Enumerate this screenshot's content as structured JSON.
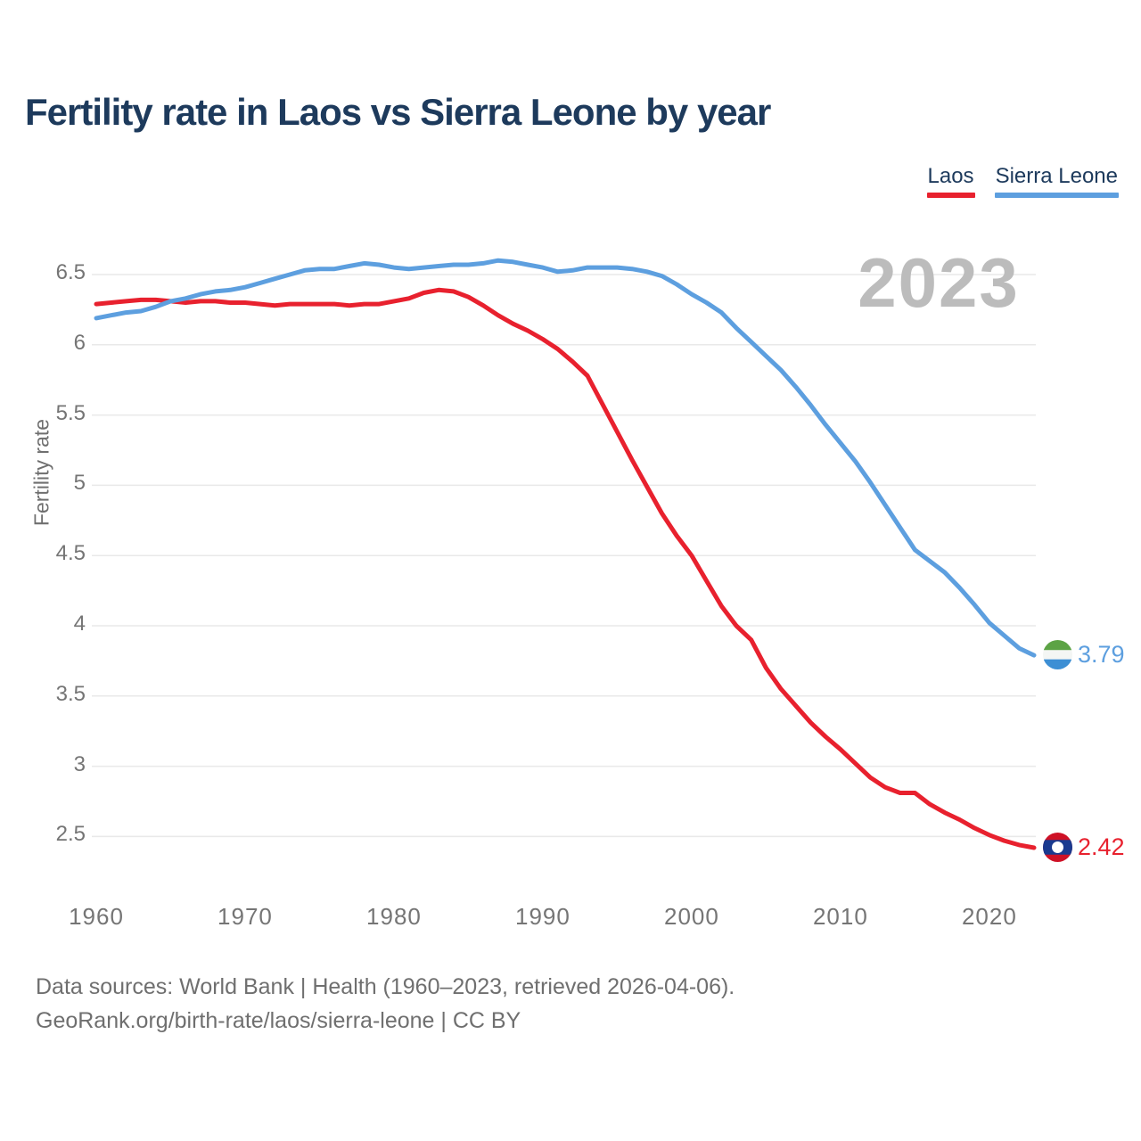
{
  "header": {
    "title": "Fertility rate in Laos vs Sierra Leone by year"
  },
  "legend": {
    "items": [
      {
        "label": "Laos",
        "color": "#e8212e"
      },
      {
        "label": "Sierra Leone",
        "color": "#5d9fdf"
      }
    ]
  },
  "watermark": "2023",
  "y_axis": {
    "label": "Fertility rate"
  },
  "end_labels": [
    {
      "series": "Sierra Leone",
      "value": "3.79",
      "color": "#5d9fdf",
      "flag_icon": "sierra-leone-flag"
    },
    {
      "series": "Laos",
      "value": "2.42",
      "color": "#e8212e",
      "flag_icon": "laos-flag"
    }
  ],
  "footer": {
    "line1": "Data sources: World Bank | Health (1960–2023, retrieved 2026-04-06).",
    "line2": "GeoRank.org/birth-rate/laos/sierra-leone | CC BY"
  },
  "colors": {
    "laos_line": "#e8212e",
    "sierra_leone_line": "#5d9fdf",
    "gridline": "#e9e9e9",
    "title_text": "#1d3a5c",
    "tick_text": "#757575",
    "watermark_text": "#bcbcbc"
  },
  "chart_data": {
    "type": "line",
    "title": "Fertility rate in Laos vs Sierra Leone by year",
    "xlabel": "",
    "ylabel": "Fertility rate",
    "grid": "horizontal",
    "legend_position": "top-right",
    "xticks": [
      1960,
      1970,
      1980,
      1990,
      2000,
      2010,
      2020
    ],
    "yticks": [
      2.5,
      3,
      3.5,
      4,
      4.5,
      5,
      5.5,
      6,
      6.5
    ],
    "xlim": [
      1960,
      2023
    ],
    "ylim": [
      2.3,
      6.72
    ],
    "x": [
      1960,
      1961,
      1962,
      1963,
      1964,
      1965,
      1966,
      1967,
      1968,
      1969,
      1970,
      1971,
      1972,
      1973,
      1974,
      1975,
      1976,
      1977,
      1978,
      1979,
      1980,
      1981,
      1982,
      1983,
      1984,
      1985,
      1986,
      1987,
      1988,
      1989,
      1990,
      1991,
      1992,
      1993,
      1994,
      1995,
      1996,
      1997,
      1998,
      1999,
      2000,
      2001,
      2002,
      2003,
      2004,
      2005,
      2006,
      2007,
      2008,
      2009,
      2010,
      2011,
      2012,
      2013,
      2014,
      2015,
      2016,
      2017,
      2018,
      2019,
      2020,
      2021,
      2022,
      2023
    ],
    "series": [
      {
        "name": "Laos",
        "color": "#e8212e",
        "end_value": 2.42,
        "values": [
          6.29,
          6.3,
          6.31,
          6.32,
          6.32,
          6.31,
          6.3,
          6.31,
          6.31,
          6.3,
          6.3,
          6.29,
          6.28,
          6.29,
          6.29,
          6.29,
          6.29,
          6.28,
          6.29,
          6.29,
          6.31,
          6.33,
          6.37,
          6.39,
          6.38,
          6.34,
          6.28,
          6.21,
          6.15,
          6.1,
          6.04,
          5.97,
          5.88,
          5.78,
          5.58,
          5.38,
          5.18,
          4.99,
          4.8,
          4.64,
          4.5,
          4.32,
          4.14,
          4.0,
          3.9,
          3.7,
          3.55,
          3.43,
          3.31,
          3.21,
          3.12,
          3.02,
          2.92,
          2.85,
          2.81,
          2.81,
          2.73,
          2.67,
          2.62,
          2.56,
          2.51,
          2.47,
          2.44,
          2.42
        ]
      },
      {
        "name": "Sierra Leone",
        "color": "#5d9fdf",
        "end_value": 3.79,
        "values": [
          6.19,
          6.21,
          6.23,
          6.24,
          6.27,
          6.31,
          6.33,
          6.36,
          6.38,
          6.39,
          6.41,
          6.44,
          6.47,
          6.5,
          6.53,
          6.54,
          6.54,
          6.56,
          6.58,
          6.57,
          6.55,
          6.54,
          6.55,
          6.56,
          6.57,
          6.57,
          6.58,
          6.6,
          6.59,
          6.57,
          6.55,
          6.52,
          6.53,
          6.55,
          6.55,
          6.55,
          6.54,
          6.52,
          6.49,
          6.43,
          6.36,
          6.3,
          6.23,
          6.12,
          6.02,
          5.92,
          5.82,
          5.7,
          5.57,
          5.43,
          5.3,
          5.17,
          5.02,
          4.86,
          4.7,
          4.54,
          4.46,
          4.38,
          4.27,
          4.15,
          4.02,
          3.93,
          3.84,
          3.79
        ]
      }
    ],
    "annotations": {
      "year_watermark": "2023"
    }
  }
}
